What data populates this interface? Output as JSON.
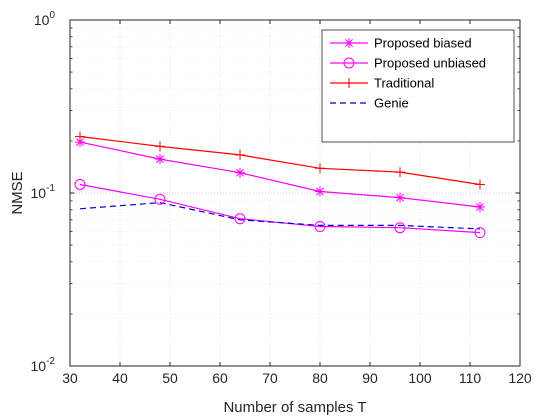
{
  "chart_data": {
    "type": "line",
    "xlabel": "Number of samples T",
    "ylabel": "NMSE",
    "xlim": [
      30,
      120
    ],
    "ylim": [
      0.01,
      1
    ],
    "yscale": "log",
    "grid": "major and minor",
    "legend_position": "top-right",
    "xticks": [
      "30",
      "40",
      "50",
      "60",
      "70",
      "80",
      "90",
      "100",
      "110",
      "120"
    ],
    "yticks": [
      {
        "base": "10",
        "exp": "-2",
        "value": 0.01
      },
      {
        "base": "10",
        "exp": "-1",
        "value": 0.1
      },
      {
        "base": "10",
        "exp": "0",
        "value": 1
      }
    ],
    "series": [
      {
        "name": "Proposed biased",
        "color": "#ff00ff",
        "line": "solid",
        "marker": "star",
        "x": [
          32,
          48,
          64,
          80,
          96,
          112
        ],
        "y": [
          0.197,
          0.157,
          0.131,
          0.102,
          0.094,
          0.083
        ]
      },
      {
        "name": "Proposed unbiased",
        "color": "#ff00ff",
        "line": "solid",
        "marker": "circle",
        "x": [
          32,
          48,
          64,
          80,
          96,
          112
        ],
        "y": [
          0.112,
          0.092,
          0.071,
          0.064,
          0.063,
          0.059
        ]
      },
      {
        "name": "Traditional",
        "color": "#ff0000",
        "line": "solid",
        "marker": "plus",
        "x": [
          32,
          48,
          64,
          80,
          96,
          112
        ],
        "y": [
          0.212,
          0.186,
          0.166,
          0.139,
          0.132,
          0.112
        ]
      },
      {
        "name": "Genie",
        "color": "#0000cc",
        "line": "dashed",
        "marker": "none",
        "x": [
          32,
          48,
          64,
          80,
          96,
          112
        ],
        "y": [
          0.081,
          0.088,
          0.07,
          0.065,
          0.065,
          0.062
        ]
      }
    ]
  }
}
